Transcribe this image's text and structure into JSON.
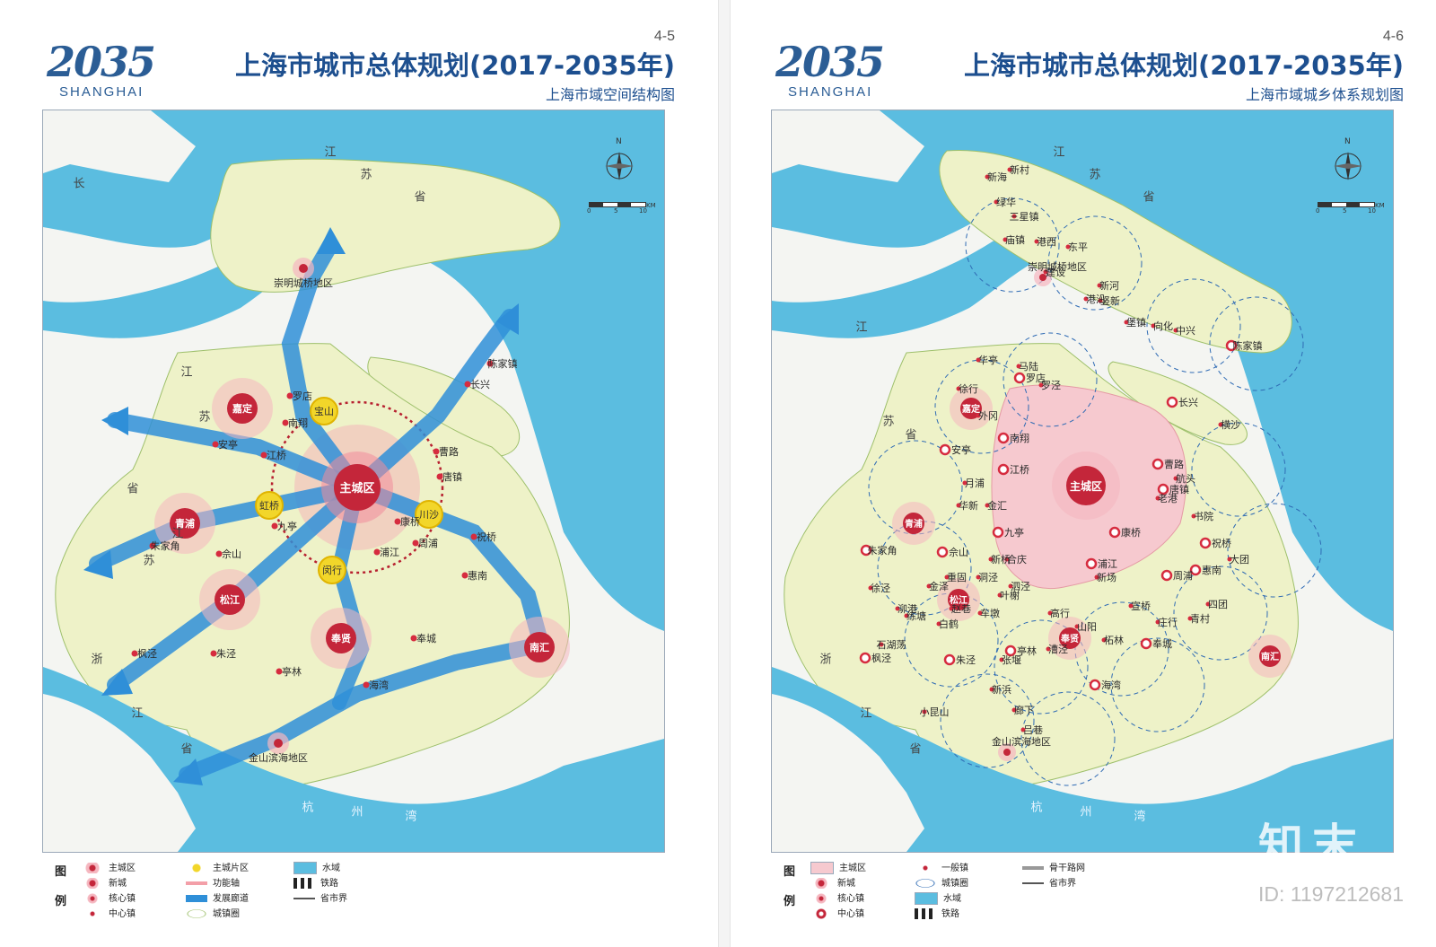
{
  "left": {
    "logo_number": "2035",
    "logo_text": "SHANGHAI",
    "page_number": "4-5",
    "title": "上海市城市总体规划(2017-2035年)",
    "subtitle": "上海市域空间结构图",
    "province_labels": [
      "江",
      "苏",
      "省",
      "长",
      "江",
      "苏",
      "省",
      "江",
      "苏",
      "浙",
      "江",
      "省"
    ],
    "river_labels": [
      "杭",
      "州",
      "湾"
    ],
    "hubs": [
      "主城区",
      "宝山",
      "虹桥",
      "川沙",
      "闵行"
    ],
    "new_cities": [
      "嘉定",
      "青浦",
      "松江",
      "奉贤",
      "南汇"
    ],
    "core_towns": [
      "崇明城桥地区",
      "金山滨海地区"
    ],
    "central_towns": [
      "罗店",
      "南翔",
      "安亭",
      "江桥",
      "九亭",
      "朱家角",
      "佘山",
      "朱泾",
      "亭林",
      "枫泾",
      "康桥",
      "周浦",
      "曹路",
      "唐镇",
      "祝桥",
      "惠南",
      "浦江",
      "奉城",
      "海湾",
      "长兴",
      "陈家镇"
    ],
    "legend_title_1": "图",
    "legend_title_2": "例",
    "legend_items": [
      "主城区",
      "新城",
      "核心镇",
      "中心镇",
      "主城片区",
      "功能轴",
      "发展廊道",
      "城镇圈",
      "水域",
      "铁路",
      "省市界"
    ]
  },
  "right": {
    "logo_number": "2035",
    "logo_text": "SHANGHAI",
    "page_number": "4-6",
    "title": "上海市城市总体规划(2017-2035年)",
    "subtitle": "上海市域城乡体系规划图",
    "main_city": "主城区",
    "new_cities": [
      "嘉定",
      "青浦",
      "松江",
      "奉贤",
      "南汇"
    ],
    "core_towns": [
      "崇明城桥地区",
      "金山滨海地区"
    ],
    "central_towns": [
      "陈家镇",
      "长兴",
      "罗店",
      "安亭",
      "朱家角",
      "佘山",
      "康桥",
      "周浦",
      "浦江",
      "祝桥",
      "惠南",
      "唐镇",
      "曹路",
      "亭林",
      "朱泾",
      "枫泾",
      "海湾",
      "奉城",
      "南翔",
      "江桥",
      "九亭"
    ],
    "general_towns": [
      "新海",
      "新村",
      "绿华",
      "三星镇",
      "庙镇",
      "港西",
      "东平",
      "建设",
      "港沿",
      "新河",
      "竖新",
      "堡镇",
      "向化",
      "中兴",
      "横沙",
      "华亭",
      "徐行",
      "外冈",
      "马陆",
      "罗泾",
      "月浦",
      "华新",
      "重固",
      "赵巷",
      "白鹤",
      "徐泾",
      "泖港",
      "金泽",
      "练塘",
      "石湖荡",
      "小昆山",
      "新浜",
      "廊下",
      "吕巷",
      "张堰",
      "漕泾",
      "山阳",
      "柘林",
      "庄行",
      "青村",
      "四团",
      "大团",
      "书院",
      "老港",
      "宣桥",
      "新场",
      "航头",
      "金汇",
      "合庆",
      "泗泾",
      "车墩",
      "新桥",
      "叶榭",
      "洞泾",
      "高行"
    ],
    "province_labels": [
      "江",
      "苏",
      "省",
      "江",
      "苏",
      "省",
      "浙",
      "江",
      "省"
    ],
    "river_labels": [
      "杭",
      "州",
      "湾"
    ],
    "legend_title_1": "图",
    "legend_title_2": "例",
    "legend_items": [
      "主城区",
      "新城",
      "核心镇",
      "中心镇",
      "一般镇",
      "城镇圈",
      "水域",
      "铁路",
      "骨干路网",
      "省市界"
    ]
  },
  "scale_ticks": [
    "0",
    "5",
    "10",
    "KM"
  ],
  "north_label": "N",
  "watermark_brand": "知末",
  "watermark_id": "ID: 1197212681",
  "colors": {
    "water": "#5bbde0",
    "land_sh": "#eef2c8",
    "land_other": "#f4f5f2",
    "main_city_zone": "#f6c9cf",
    "axis_blue": "#2f8fd8",
    "hub_yellow": "#f2d62a",
    "node_red": "#d62c3f",
    "title_blue": "#1d4f8f"
  }
}
